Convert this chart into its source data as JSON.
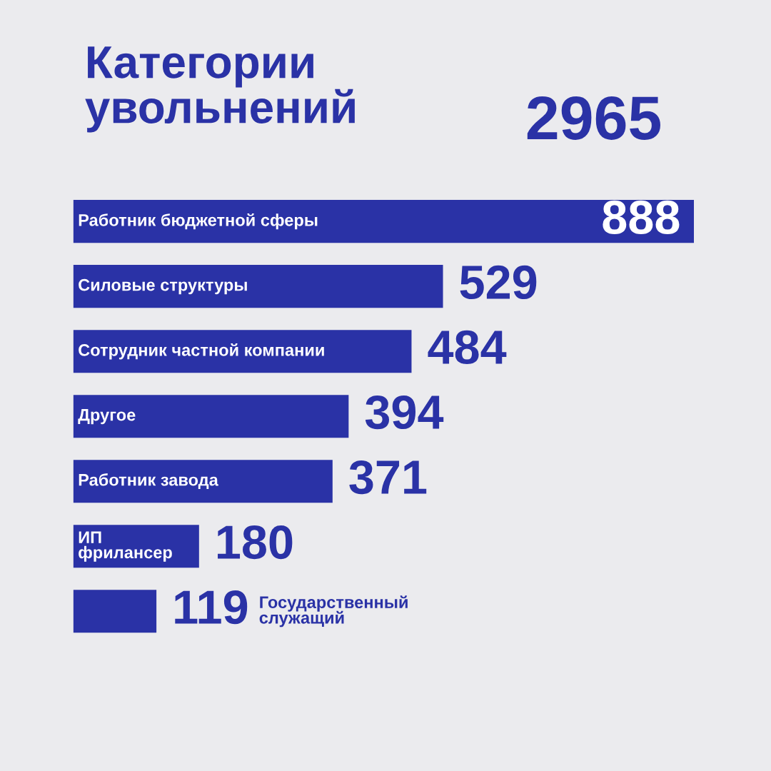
{
  "chart_data": {
    "type": "bar",
    "orientation": "horizontal",
    "title": "Категории увольнений",
    "annotations": [
      "2965"
    ],
    "categories": [
      "Работник бюджетной сферы",
      "Силовые структуры",
      "Сотрудник частной компании",
      "Другое",
      "Работник завода",
      "ИП фрилансер",
      "Государственный служащий"
    ],
    "values": [
      888,
      529,
      484,
      394,
      371,
      180,
      119
    ],
    "color": "#2a32a6",
    "data_labels": true,
    "tick_labels": false
  }
}
